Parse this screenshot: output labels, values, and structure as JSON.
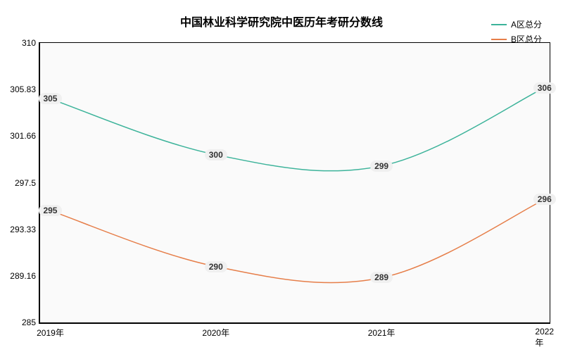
{
  "chart": {
    "type": "line",
    "title": "中国林业科学研究院中医历年考研分数线",
    "title_fontsize": 16,
    "background_color": "#ffffff",
    "plot_bg": "#fafafa",
    "grid_color": "#e0e0e0",
    "axis_color": "#000000",
    "x_categories": [
      "2019年",
      "2020年",
      "2021年",
      "2022年"
    ],
    "x_positions_pct": [
      2,
      34.5,
      67,
      99
    ],
    "ylim": [
      285,
      310
    ],
    "yticks": [
      285,
      289.16,
      293.33,
      297.5,
      301.66,
      305.83,
      310
    ],
    "yticks_labels": [
      "285",
      "289.16",
      "293.33",
      "297.5",
      "301.66",
      "305.83",
      "310"
    ],
    "label_fontsize": 12,
    "series": [
      {
        "name": "A区总分",
        "color": "#3cb39a",
        "values": [
          305,
          300,
          299,
          306
        ],
        "line_width": 1.5,
        "data_label_bg": "#f0f0f0",
        "data_label_color": "#333333"
      },
      {
        "name": "B区总分",
        "color": "#e67e49",
        "values": [
          295,
          290,
          289,
          296
        ],
        "line_width": 1.5,
        "data_label_bg": "#f0f0f0",
        "data_label_color": "#333333"
      }
    ]
  }
}
